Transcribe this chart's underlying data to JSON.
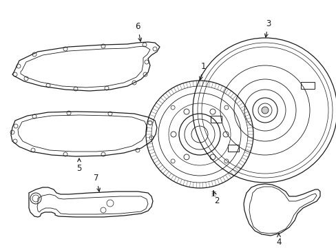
{
  "background_color": "#ffffff",
  "line_color": "#1a1a1a",
  "figsize": [
    4.89,
    3.6
  ],
  "dpi": 100,
  "label_fontsize": 8.5
}
